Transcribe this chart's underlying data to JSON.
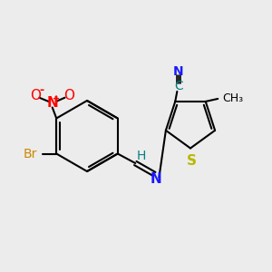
{
  "background_color": "#ececec",
  "bond_color": "#000000",
  "colors": {
    "N_nitro": "#ff0000",
    "N_imine": "#1a1aff",
    "N_cyan": "#1a1aff",
    "Br": "#cc8800",
    "S": "#b8b800",
    "C_cyan": "#008080",
    "H": "#008080"
  },
  "figsize": [
    3.0,
    3.0
  ],
  "dpi": 100,
  "xlim": [
    0,
    10
  ],
  "ylim": [
    0,
    10
  ]
}
